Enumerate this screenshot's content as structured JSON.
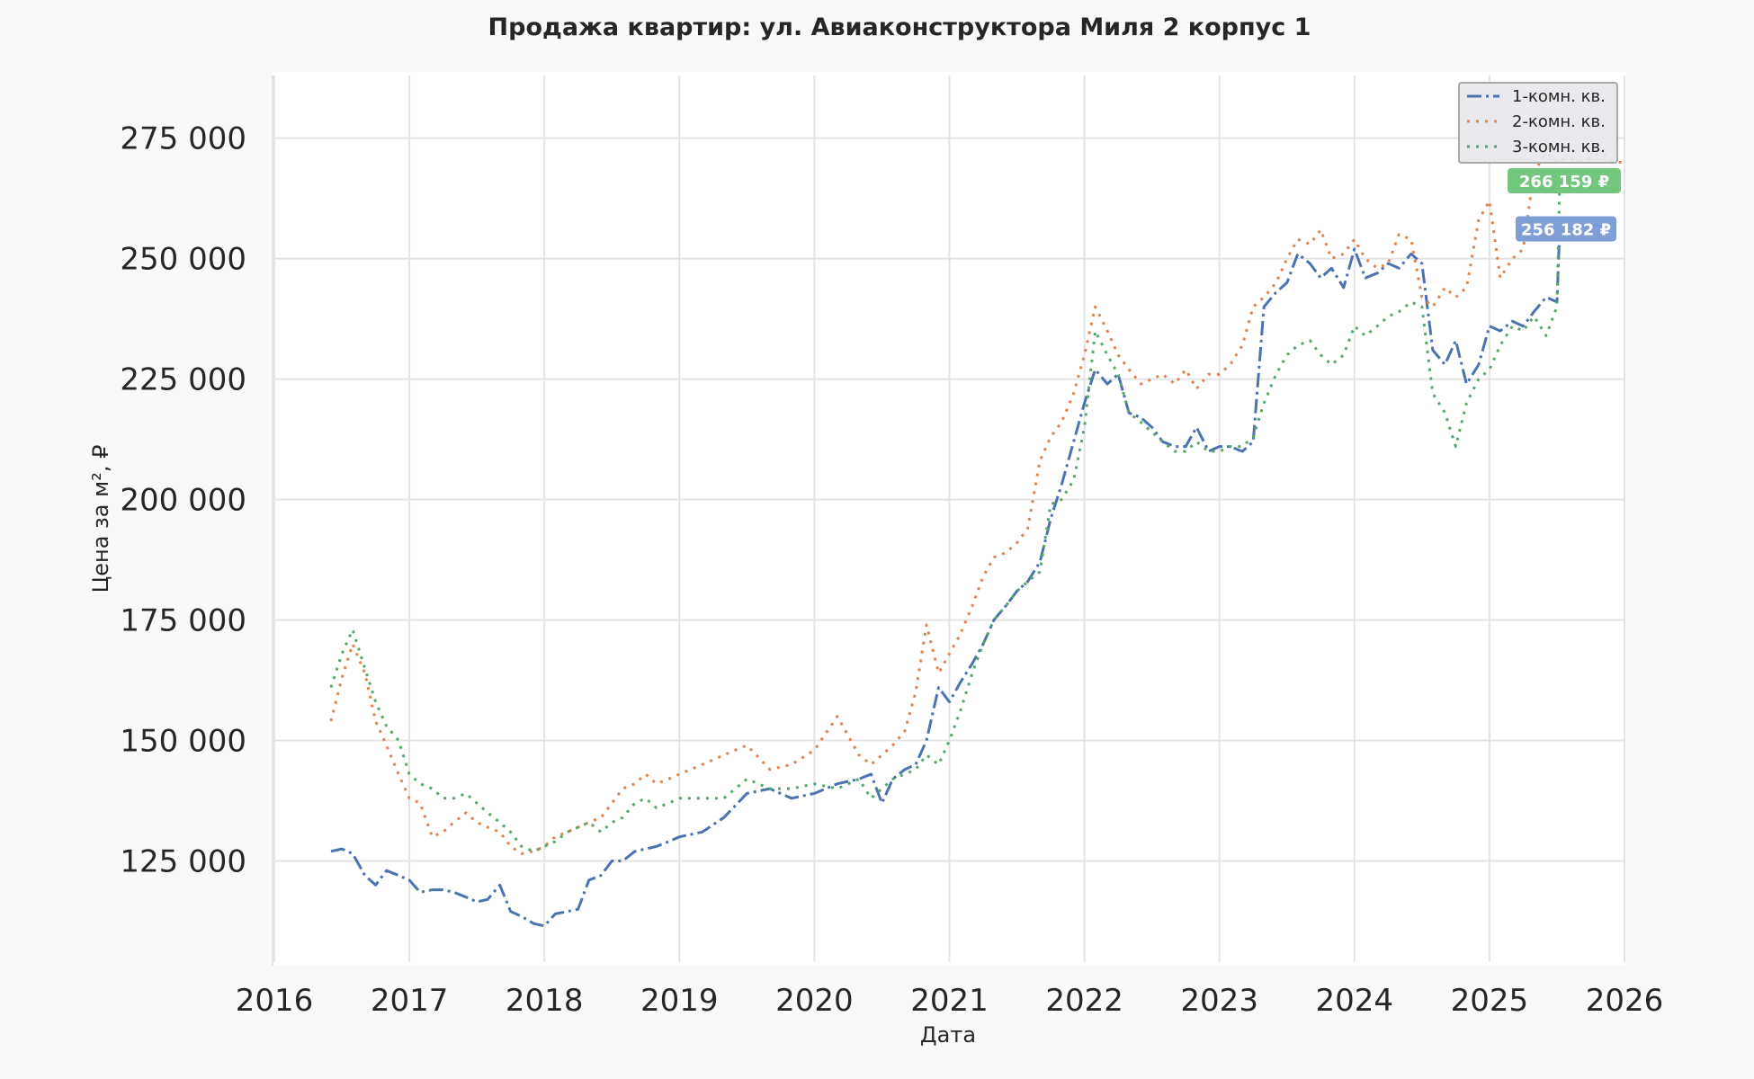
{
  "chart_data": {
    "type": "line",
    "title": "Продажа квартир: ул. Авиаконструктора Миля 2 корпус 1",
    "xlabel": "Дата",
    "ylabel": "Цена за м², ₽",
    "xlim": [
      2016.0,
      2026.0
    ],
    "ylim": [
      104000,
      288000
    ],
    "x_ticks": [
      2016,
      2017,
      2018,
      2019,
      2020,
      2021,
      2022,
      2023,
      2024,
      2025,
      2026
    ],
    "x_tick_labels": [
      "2016",
      "2017",
      "2018",
      "2019",
      "2020",
      "2021",
      "2022",
      "2023",
      "2024",
      "2025",
      "2026"
    ],
    "y_ticks": [
      125000,
      150000,
      175000,
      200000,
      225000,
      250000,
      275000
    ],
    "y_tick_labels": [
      "125 000",
      "150 000",
      "175 000",
      "200 000",
      "225 000",
      "250 000",
      "275 000"
    ],
    "grid": true,
    "legend_position": "top-right",
    "series": [
      {
        "name": "1-комн. кв.",
        "color": "#4c72b0",
        "dash": "dashdot",
        "x": [
          2016.42,
          2016.5,
          2016.58,
          2016.67,
          2016.75,
          2016.83,
          2016.92,
          2017.0,
          2017.08,
          2017.17,
          2017.25,
          2017.33,
          2017.42,
          2017.5,
          2017.58,
          2017.67,
          2017.75,
          2017.83,
          2017.92,
          2018.0,
          2018.08,
          2018.17,
          2018.25,
          2018.33,
          2018.42,
          2018.5,
          2018.58,
          2018.67,
          2018.75,
          2018.83,
          2018.92,
          2019.0,
          2019.17,
          2019.33,
          2019.5,
          2019.67,
          2019.83,
          2020.0,
          2020.17,
          2020.33,
          2020.42,
          2020.5,
          2020.58,
          2020.67,
          2020.75,
          2020.83,
          2020.92,
          2021.0,
          2021.08,
          2021.17,
          2021.25,
          2021.33,
          2021.42,
          2021.5,
          2021.58,
          2021.67,
          2021.75,
          2021.83,
          2021.92,
          2022.0,
          2022.08,
          2022.17,
          2022.25,
          2022.33,
          2022.42,
          2022.5,
          2022.58,
          2022.67,
          2022.75,
          2022.83,
          2022.92,
          2023.0,
          2023.08,
          2023.17,
          2023.25,
          2023.33,
          2023.42,
          2023.5,
          2023.58,
          2023.67,
          2023.75,
          2023.83,
          2023.92,
          2024.0,
          2024.08,
          2024.17,
          2024.25,
          2024.33,
          2024.42,
          2024.5,
          2024.58,
          2024.67,
          2024.75,
          2024.83,
          2024.92,
          2025.0,
          2025.08,
          2025.17,
          2025.25,
          2025.33,
          2025.42,
          2025.5,
          2025.52
        ],
        "y": [
          127000,
          127500,
          126500,
          122000,
          120000,
          123000,
          122000,
          121000,
          118500,
          119000,
          119000,
          118500,
          117500,
          116500,
          117000,
          120000,
          114500,
          113500,
          112000,
          111500,
          114000,
          114500,
          115000,
          121000,
          122000,
          125000,
          125000,
          127000,
          127500,
          128000,
          129000,
          130000,
          131000,
          134000,
          139000,
          140000,
          138000,
          139000,
          141000,
          142000,
          143000,
          137000,
          142000,
          144000,
          145000,
          150000,
          161000,
          158000,
          162000,
          166000,
          170000,
          175000,
          178000,
          181000,
          183000,
          187000,
          196000,
          203000,
          212000,
          220000,
          227000,
          224000,
          226000,
          218000,
          217000,
          215000,
          212000,
          211000,
          211000,
          215000,
          210000,
          211000,
          211000,
          210000,
          212000,
          240000,
          243000,
          245000,
          251000,
          249000,
          246000,
          248000,
          244000,
          252000,
          246000,
          247000,
          249000,
          248000,
          251000,
          249000,
          231000,
          228000,
          233000,
          224000,
          228000,
          236000,
          235000,
          237000,
          236000,
          239000,
          242000,
          241000,
          256182
        ]
      },
      {
        "name": "2-комн. кв.",
        "color": "#dd8452",
        "dash": "dotted",
        "x": [
          2016.42,
          2016.5,
          2016.58,
          2016.67,
          2016.75,
          2016.83,
          2016.92,
          2017.0,
          2017.08,
          2017.17,
          2017.25,
          2017.33,
          2017.42,
          2017.5,
          2017.58,
          2017.67,
          2017.75,
          2017.83,
          2017.92,
          2018.0,
          2018.08,
          2018.17,
          2018.25,
          2018.33,
          2018.42,
          2018.5,
          2018.58,
          2018.67,
          2018.75,
          2018.83,
          2018.92,
          2019.0,
          2019.17,
          2019.33,
          2019.5,
          2019.67,
          2019.83,
          2020.0,
          2020.17,
          2020.33,
          2020.42,
          2020.5,
          2020.58,
          2020.67,
          2020.75,
          2020.83,
          2020.92,
          2021.0,
          2021.08,
          2021.17,
          2021.25,
          2021.33,
          2021.42,
          2021.5,
          2021.58,
          2021.67,
          2021.75,
          2021.83,
          2021.92,
          2022.0,
          2022.08,
          2022.17,
          2022.25,
          2022.33,
          2022.42,
          2022.5,
          2022.58,
          2022.67,
          2022.75,
          2022.83,
          2022.92,
          2023.0,
          2023.08,
          2023.17,
          2023.25,
          2023.33,
          2023.42,
          2023.5,
          2023.58,
          2023.67,
          2023.75,
          2023.83,
          2023.92,
          2024.0,
          2024.08,
          2024.17,
          2024.25,
          2024.33,
          2024.42,
          2024.5,
          2024.58,
          2024.67,
          2024.75,
          2024.83,
          2024.92,
          2025.0,
          2025.08,
          2025.17,
          2025.25,
          2025.33,
          2025.42,
          2025.5,
          2025.58,
          2025.67,
          2025.75,
          2025.83,
          2025.92,
          2026.0
        ],
        "y": [
          154000,
          163000,
          170000,
          164000,
          154000,
          149000,
          143000,
          138000,
          137000,
          130000,
          131000,
          133000,
          135000,
          133000,
          132000,
          131000,
          128000,
          126500,
          127000,
          128000,
          130000,
          131000,
          132000,
          133000,
          134000,
          137000,
          140000,
          141000,
          143000,
          141000,
          142000,
          143000,
          145000,
          147000,
          149000,
          144000,
          145000,
          148000,
          155000,
          147000,
          145000,
          147000,
          149000,
          152000,
          160000,
          174000,
          164000,
          168000,
          172000,
          178000,
          184000,
          188000,
          189000,
          191000,
          194000,
          208000,
          213000,
          216000,
          222000,
          230000,
          240000,
          235000,
          230000,
          227000,
          224000,
          225000,
          226000,
          224000,
          227000,
          223000,
          226000,
          226000,
          228000,
          232000,
          240000,
          242000,
          245000,
          250000,
          254000,
          253000,
          256000,
          250000,
          251000,
          254000,
          250000,
          248000,
          249000,
          255000,
          254000,
          242000,
          240000,
          244000,
          242000,
          244000,
          258000,
          262000,
          246000,
          250000,
          252000,
          268000,
          272000,
          270000,
          271000,
          270000,
          271000,
          272000,
          270000,
          270000
        ]
      },
      {
        "name": "3-комн. кв.",
        "color": "#55a868",
        "dash": "dotted",
        "x": [
          2016.42,
          2016.5,
          2016.58,
          2016.67,
          2016.75,
          2016.83,
          2016.92,
          2017.0,
          2017.08,
          2017.17,
          2017.25,
          2017.33,
          2017.42,
          2017.5,
          2017.58,
          2017.67,
          2017.75,
          2017.83,
          2017.92,
          2018.0,
          2018.08,
          2018.17,
          2018.25,
          2018.33,
          2018.42,
          2018.5,
          2018.58,
          2018.67,
          2018.75,
          2018.83,
          2018.92,
          2019.0,
          2019.17,
          2019.33,
          2019.5,
          2019.67,
          2019.83,
          2020.0,
          2020.17,
          2020.33,
          2020.42,
          2020.5,
          2020.58,
          2020.67,
          2020.75,
          2020.83,
          2020.92,
          2021.0,
          2021.08,
          2021.17,
          2021.25,
          2021.33,
          2021.42,
          2021.5,
          2021.58,
          2021.67,
          2021.75,
          2021.83,
          2021.92,
          2022.0,
          2022.08,
          2022.17,
          2022.25,
          2022.33,
          2022.42,
          2022.5,
          2022.58,
          2022.67,
          2022.75,
          2022.83,
          2022.92,
          2023.0,
          2023.08,
          2023.17,
          2023.25,
          2023.33,
          2023.42,
          2023.5,
          2023.58,
          2023.67,
          2023.75,
          2023.83,
          2023.92,
          2024.0,
          2024.08,
          2024.17,
          2024.25,
          2024.33,
          2024.42,
          2024.5,
          2024.58,
          2024.67,
          2024.75,
          2024.83,
          2024.92,
          2025.0,
          2025.08,
          2025.17,
          2025.25,
          2025.33,
          2025.42,
          2025.5,
          2025.52
        ],
        "y": [
          161000,
          168000,
          173000,
          165000,
          158000,
          153000,
          150000,
          143000,
          141000,
          140000,
          138000,
          138000,
          139000,
          137000,
          135000,
          133000,
          131000,
          128000,
          127000,
          128000,
          129000,
          131000,
          132000,
          133000,
          131000,
          133000,
          134000,
          137000,
          138000,
          136000,
          137000,
          138000,
          138000,
          138000,
          142000,
          140000,
          140000,
          141000,
          140000,
          142000,
          138000,
          140000,
          142000,
          143000,
          144000,
          147000,
          145000,
          150000,
          156000,
          164000,
          170000,
          175000,
          178000,
          181000,
          183000,
          185000,
          199000,
          200000,
          204000,
          215000,
          235000,
          230000,
          226000,
          218000,
          216000,
          214000,
          212000,
          210000,
          210000,
          212000,
          210000,
          210000,
          211000,
          211000,
          213000,
          220000,
          226000,
          230000,
          232000,
          233000,
          230000,
          228000,
          230000,
          236000,
          234000,
          236000,
          238000,
          239000,
          241000,
          240000,
          222000,
          218000,
          211000,
          220000,
          225000,
          227000,
          232000,
          236000,
          235000,
          238000,
          234000,
          240000,
          266159
        ]
      }
    ],
    "last_value_labels": [
      {
        "series": "1-комн. кв.",
        "text": "256 182 ₽",
        "value": 256182,
        "color": "#7f9ed6"
      },
      {
        "series": "3-комн. кв.",
        "text": "266 159 ₽",
        "value": 266159,
        "color": "#73c77c"
      }
    ]
  }
}
